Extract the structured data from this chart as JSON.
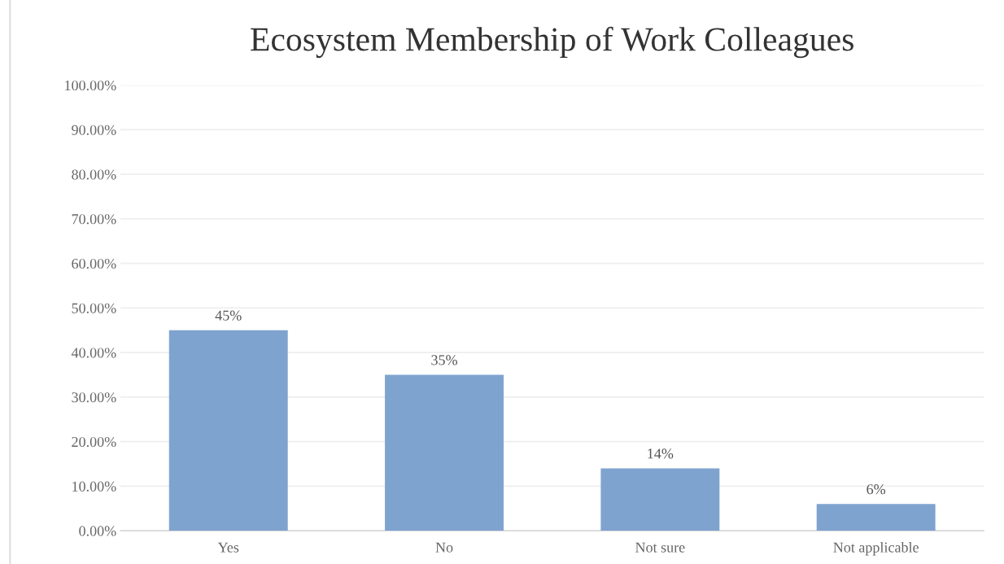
{
  "chart_data": {
    "type": "bar",
    "title": "Ecosystem Membership of Work Colleagues",
    "categories": [
      "Yes",
      "No",
      "Not sure",
      "Not applicable"
    ],
    "values": [
      45,
      35,
      14,
      6
    ],
    "value_labels": [
      "45%",
      "35%",
      "14%",
      "6%"
    ],
    "color": "#7fa3cf",
    "ylim": [
      0,
      100
    ],
    "yticks": [
      {
        "value": 0,
        "label": "0.00%"
      },
      {
        "value": 10,
        "label": "10.00%"
      },
      {
        "value": 20,
        "label": "20.00%"
      },
      {
        "value": 30,
        "label": "30.00%"
      },
      {
        "value": 40,
        "label": "40.00%"
      },
      {
        "value": 50,
        "label": "50.00%"
      },
      {
        "value": 60,
        "label": "60.00%"
      },
      {
        "value": 70,
        "label": "70.00%"
      },
      {
        "value": 80,
        "label": "80.00%"
      },
      {
        "value": 90,
        "label": "90.00%"
      },
      {
        "value": 100,
        "label": "100.00%"
      }
    ],
    "grid": "y",
    "legend": false
  }
}
